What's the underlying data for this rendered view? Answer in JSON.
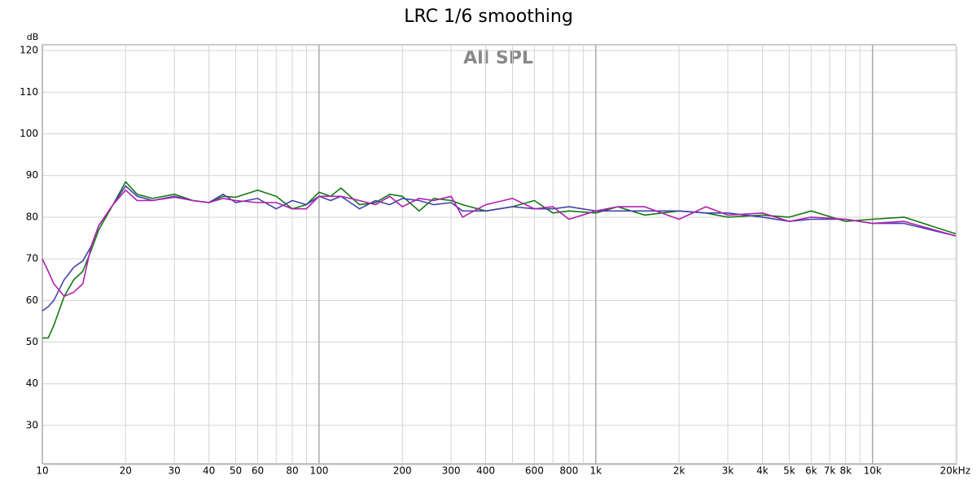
{
  "chart_data": {
    "type": "line",
    "title": "LRC 1/6 smoothing",
    "annotation": "All SPL",
    "y_label": "dB",
    "x_scale": "log",
    "grid": true,
    "x": [
      10,
      10.5,
      11,
      12,
      13,
      14,
      15,
      16,
      18,
      20,
      22,
      25,
      30,
      35,
      40,
      45,
      50,
      60,
      70,
      80,
      90,
      100,
      110,
      120,
      140,
      160,
      180,
      200,
      230,
      260,
      300,
      330,
      400,
      500,
      600,
      700,
      800,
      1000,
      1200,
      1500,
      2000,
      2500,
      3000,
      4000,
      5000,
      6000,
      8000,
      10000,
      13000,
      20000
    ],
    "series": [
      {
        "color": "#127a12",
        "values": [
          51,
          51,
          54,
          61,
          65,
          67,
          72,
          77,
          83,
          88.5,
          85.5,
          84.5,
          85.5,
          84,
          83.5,
          85,
          84.8,
          86.5,
          85,
          82,
          83,
          86,
          85,
          87,
          83,
          83.5,
          85.5,
          85,
          81.5,
          84.5,
          84,
          83,
          81.5,
          82.5,
          84,
          81,
          81.5,
          81,
          82.5,
          80.5,
          81.5,
          81,
          80,
          80.5,
          80,
          81.5,
          79,
          79.5,
          80,
          76
        ]
      },
      {
        "color": "#4444aa",
        "values": [
          57.5,
          58.5,
          60,
          65,
          68,
          69.5,
          73,
          78,
          83,
          87.5,
          85,
          84,
          85,
          84,
          83.5,
          85.5,
          83.5,
          84.5,
          82,
          84,
          83,
          85,
          84,
          85,
          82,
          84,
          83,
          84.5,
          84,
          83,
          83.5,
          81.5,
          81.5,
          82.5,
          82,
          82,
          82.5,
          81.5,
          81.5,
          81.5,
          81.5,
          81,
          81,
          80,
          79,
          79.5,
          79.5,
          78.5,
          78.5,
          75.5
        ]
      },
      {
        "color": "#b020b0",
        "values": [
          70,
          67,
          64,
          61,
          62,
          64,
          73,
          78,
          83,
          86.5,
          84,
          84,
          84.8,
          84,
          83.5,
          84.5,
          84,
          83.5,
          83.5,
          82,
          82,
          85,
          85,
          85,
          84,
          83,
          85,
          82.5,
          84.5,
          84,
          85,
          80,
          83,
          84.5,
          82,
          82.5,
          79.5,
          81.5,
          82.5,
          82.5,
          79.5,
          82.5,
          80.5,
          81,
          79,
          80,
          79.5,
          78.5,
          79,
          75.5
        ]
      }
    ],
    "xlim": [
      10,
      20000
    ],
    "ylim": [
      20.8,
      121.4
    ],
    "xticks": [
      10,
      20,
      30,
      40,
      50,
      60,
      80,
      100,
      200,
      300,
      400,
      600,
      800,
      {
        "value": 1000,
        "label": "1k"
      },
      {
        "value": 2000,
        "label": "2k"
      },
      {
        "value": 3000,
        "label": "3k"
      },
      {
        "value": 4000,
        "label": "4k"
      },
      {
        "value": 5000,
        "label": "5k"
      },
      {
        "value": 6000,
        "label": "6k"
      },
      {
        "value": 7000,
        "label": "7k"
      },
      {
        "value": 8000,
        "label": "8k"
      },
      {
        "value": 10000,
        "label": "10k"
      },
      {
        "value": 20000,
        "label": "20kHz"
      }
    ],
    "xminorticks": [
      70,
      90,
      500,
      700,
      900,
      9000
    ],
    "yticks": [
      30,
      40,
      50,
      60,
      70,
      80,
      90,
      100,
      110,
      120
    ]
  }
}
